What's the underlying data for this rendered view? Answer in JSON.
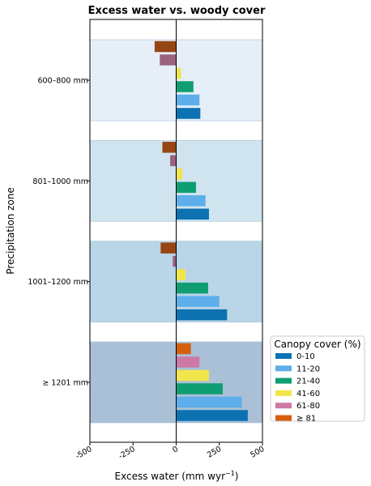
{
  "chart_data": {
    "type": "bar",
    "orientation": "horizontal",
    "title": "Excess water vs. woody cover",
    "xlabel_main": "Excess water (mm wyr",
    "xlabel_sup": "−1",
    "xlabel_end": ")",
    "ylabel": "Precipitation zone",
    "xlim": [
      -500,
      500
    ],
    "xticks": [
      -500,
      -250,
      0,
      250,
      500
    ],
    "xtick_labels": [
      "-500",
      "-250",
      "0",
      "250",
      "500"
    ],
    "zones": [
      {
        "label": "600–800 mm",
        "band_color": "#e6eef8",
        "bars": [
          {
            "series": "0-10",
            "value": 140,
            "color": "#0c72b1"
          },
          {
            "series": "11-20",
            "value": 135,
            "color": "#5daeea"
          },
          {
            "series": "21-40",
            "value": 100,
            "color": "#0e9e72"
          },
          {
            "series": "41-60",
            "value": 28,
            "color": "#f1e54a"
          },
          {
            "series": "61-80",
            "value": -95,
            "color": "#9b6380"
          },
          {
            "series": "≥ 81",
            "value": -125,
            "color": "#954613"
          }
        ]
      },
      {
        "label": "801–1000 mm",
        "band_color": "#cfe4ef",
        "bars": [
          {
            "series": "0-10",
            "value": 190,
            "color": "#0c72b1"
          },
          {
            "series": "11-20",
            "value": 170,
            "color": "#5daeea"
          },
          {
            "series": "21-40",
            "value": 115,
            "color": "#0e9e72"
          },
          {
            "series": "41-60",
            "value": 35,
            "color": "#f1e54a"
          },
          {
            "series": "61-80",
            "value": -35,
            "color": "#9b6380"
          },
          {
            "series": "≥ 81",
            "value": -80,
            "color": "#954613"
          }
        ]
      },
      {
        "label": "1001–1200 mm",
        "band_color": "#b9d5e8",
        "bars": [
          {
            "series": "0-10",
            "value": 295,
            "color": "#0c72b1"
          },
          {
            "series": "11-20",
            "value": 250,
            "color": "#5daeea"
          },
          {
            "series": "21-40",
            "value": 185,
            "color": "#0e9e72"
          },
          {
            "series": "41-60",
            "value": 55,
            "color": "#f1e54a"
          },
          {
            "series": "61-80",
            "value": -20,
            "color": "#9b6380"
          },
          {
            "series": "≥ 81",
            "value": -90,
            "color": "#954613"
          }
        ]
      },
      {
        "label": "≥ 1201 mm",
        "band_color": "#a9c0d6",
        "bars": [
          {
            "series": "0-10",
            "value": 415,
            "color": "#0c72b1"
          },
          {
            "series": "11-20",
            "value": 380,
            "color": "#5daeea"
          },
          {
            "series": "21-40",
            "value": 270,
            "color": "#0e9e72"
          },
          {
            "series": "41-60",
            "value": 190,
            "color": "#f1e54a"
          },
          {
            "series": "61-80",
            "value": 135,
            "color": "#cc79a7"
          },
          {
            "series": "≥ 81",
            "value": 85,
            "color": "#d65f0e"
          }
        ]
      }
    ],
    "legend": {
      "title": "Canopy cover (%)",
      "placement": "right",
      "entries": [
        {
          "label": "0-10",
          "color": "#0c72b1"
        },
        {
          "label": "11-20",
          "color": "#5daeea"
        },
        {
          "label": "21-40",
          "color": "#0e9e72"
        },
        {
          "label": "41-60",
          "color": "#f1e54a"
        },
        {
          "label": "61-80",
          "color": "#cc79a7"
        },
        {
          "label": "≥ 81",
          "color": "#d65f0e"
        }
      ]
    }
  }
}
